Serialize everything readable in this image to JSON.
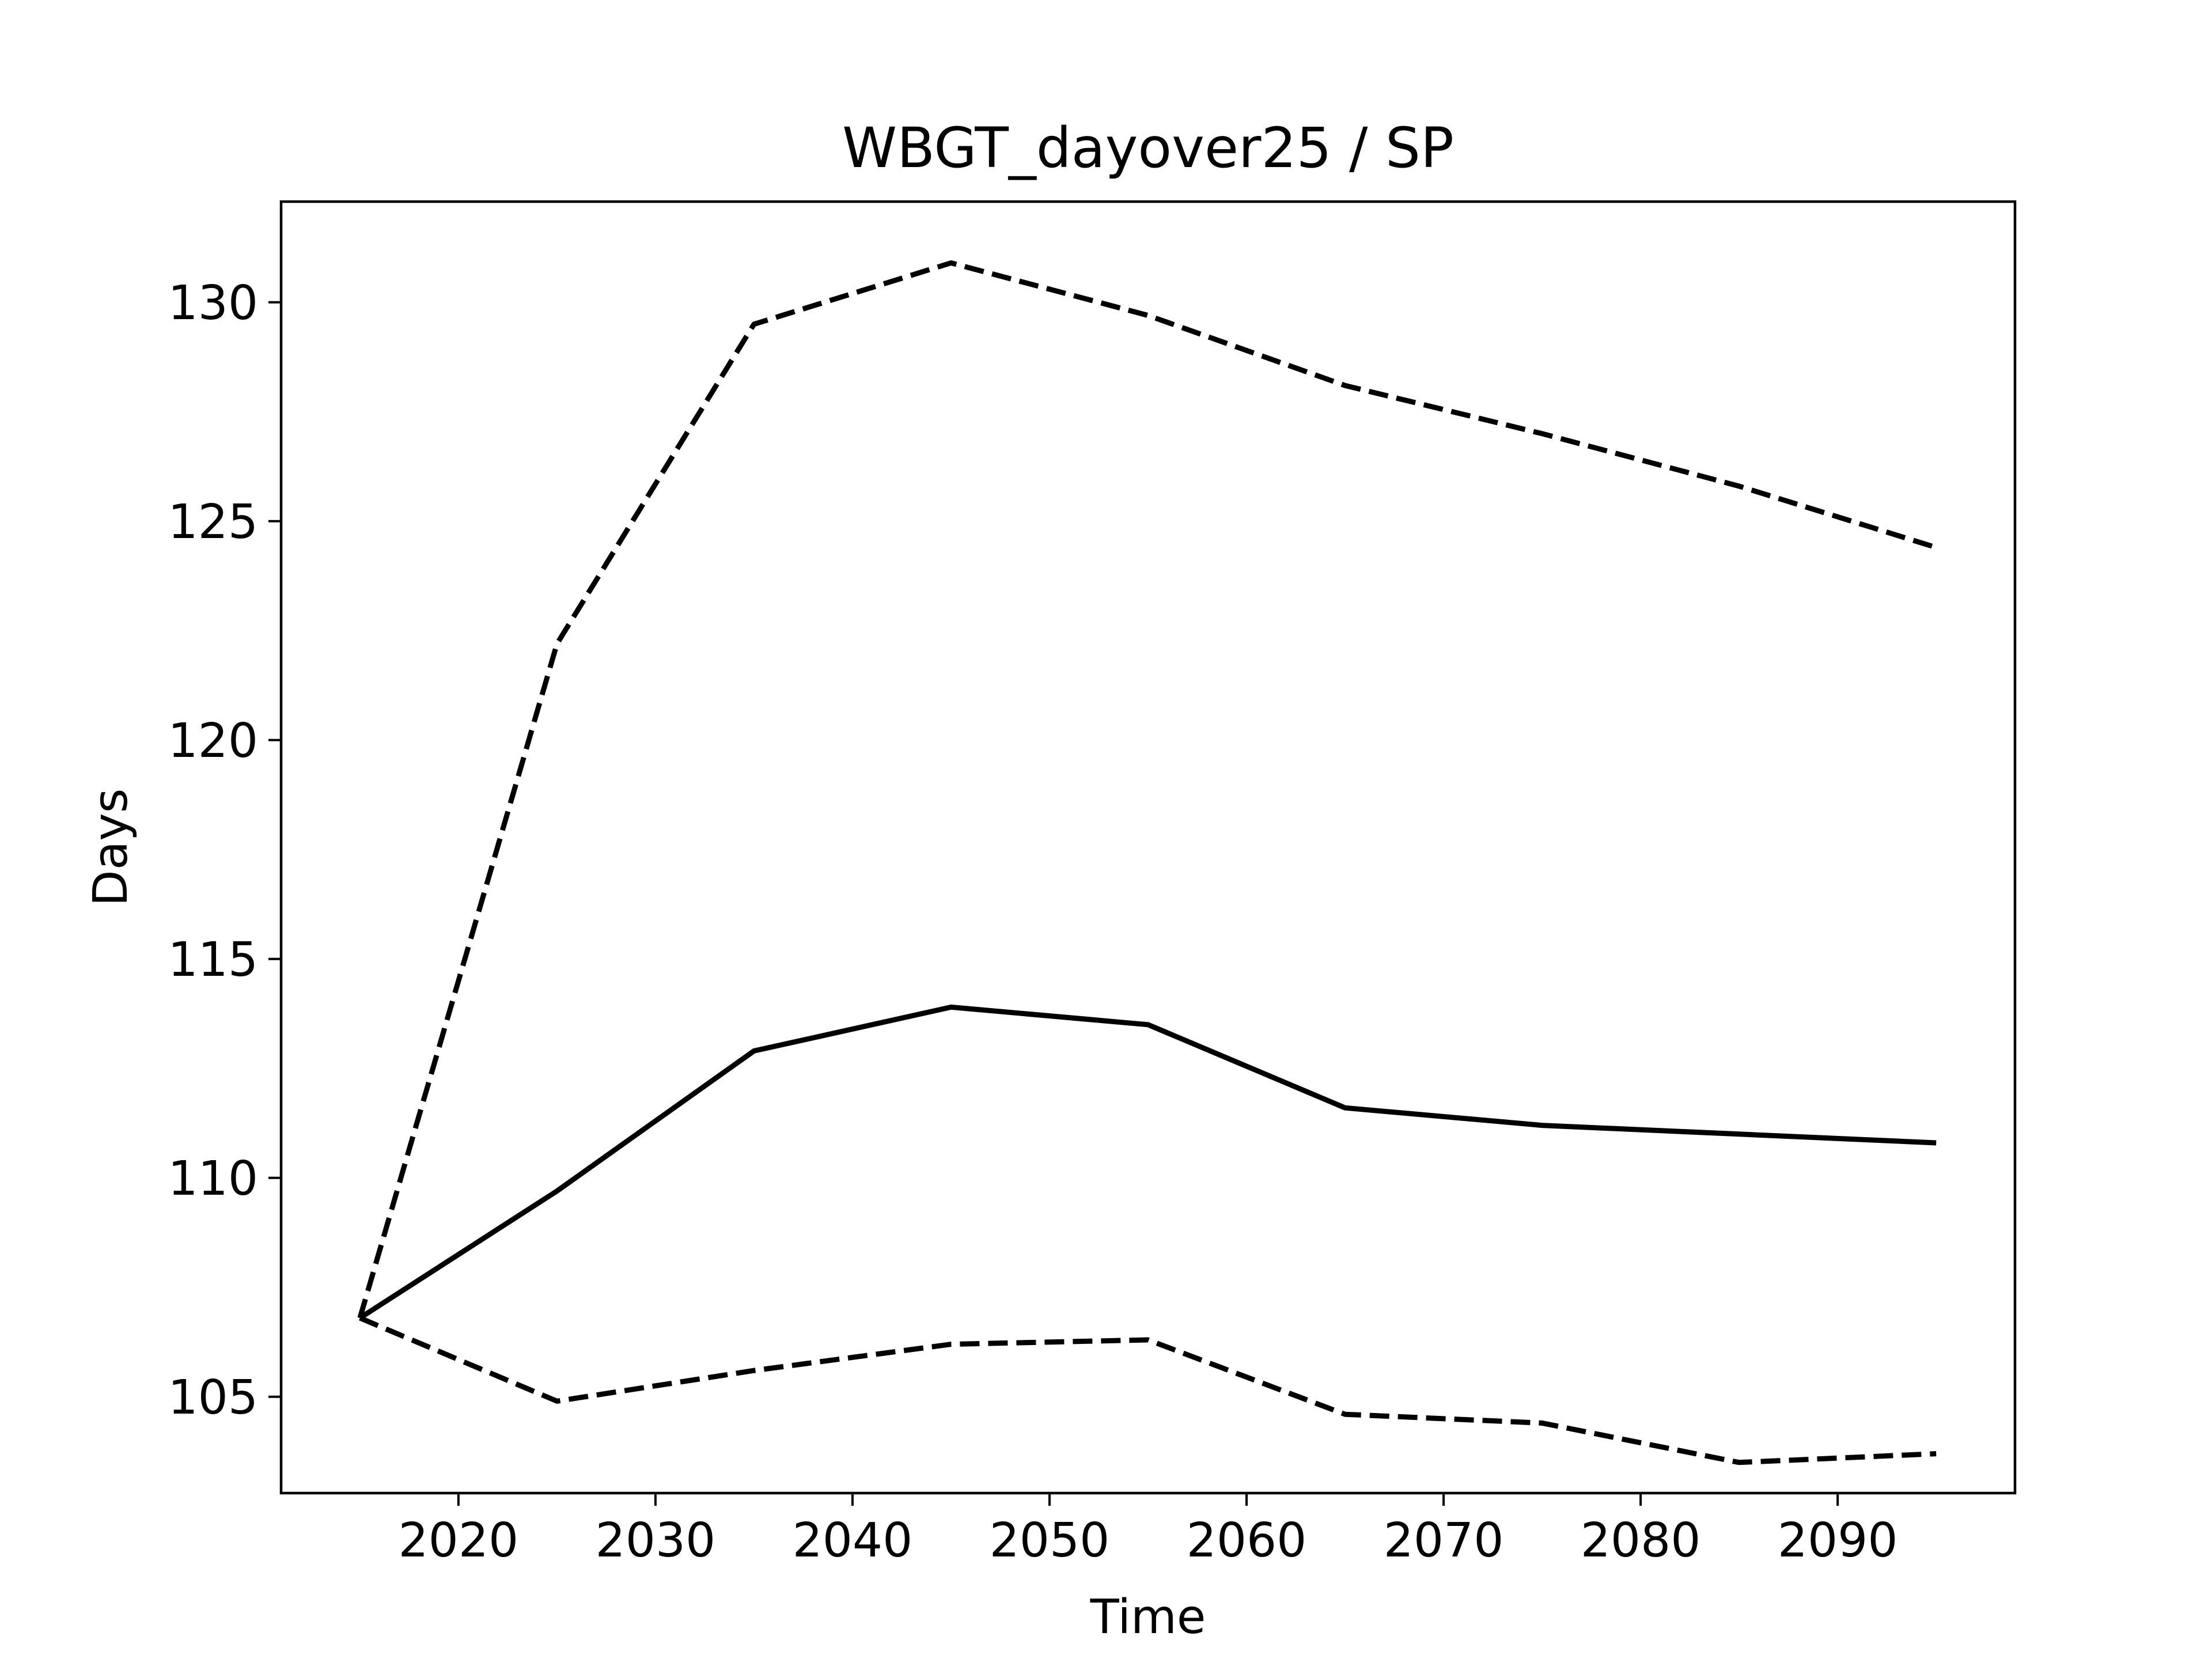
{
  "chart_data": {
    "type": "line",
    "title": "WBGT_dayover25 / SP",
    "xlabel": "Time",
    "ylabel": "Days",
    "xlim": [
      2011,
      2099
    ],
    "ylim": [
      102.8,
      132.3
    ],
    "xticks": [
      2020,
      2030,
      2040,
      2050,
      2060,
      2070,
      2080,
      2090
    ],
    "yticks": [
      105,
      110,
      115,
      120,
      125,
      130
    ],
    "grid": false,
    "x": [
      2015,
      2025,
      2035,
      2045,
      2055,
      2065,
      2075,
      2085,
      2095
    ],
    "series": [
      {
        "style": "solid",
        "values": [
          106.8,
          109.7,
          112.9,
          113.9,
          113.5,
          111.6,
          111.2,
          111.0,
          110.8
        ]
      },
      {
        "style": "dashed",
        "values": [
          106.8,
          122.2,
          129.5,
          130.9,
          129.7,
          128.1,
          127.0,
          125.8,
          124.4
        ]
      },
      {
        "style": "dashed",
        "values": [
          106.8,
          104.9,
          105.6,
          106.2,
          106.3,
          104.6,
          104.4,
          103.5,
          103.7
        ]
      }
    ],
    "colors": {
      "line": "#000000",
      "axes": "#000000",
      "background": "#ffffff"
    }
  }
}
